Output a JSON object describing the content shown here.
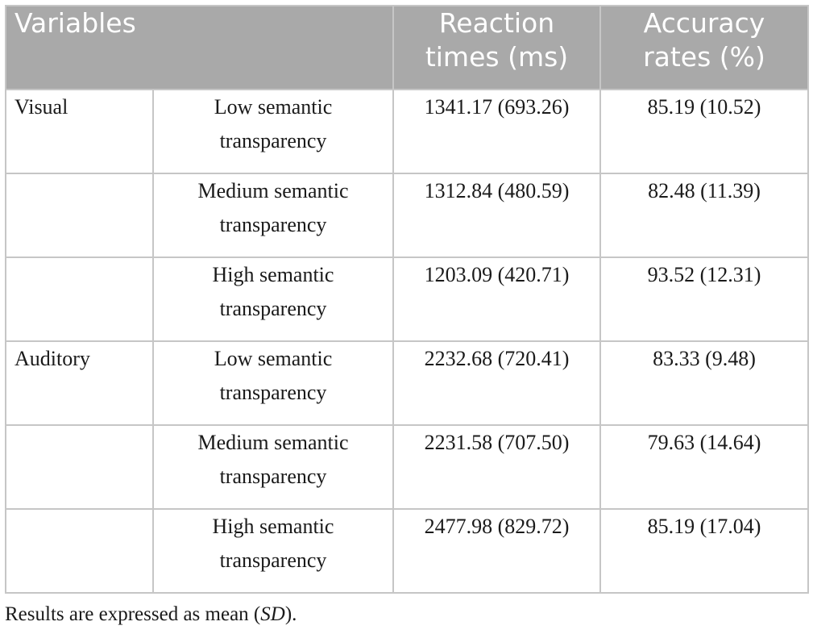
{
  "table": {
    "headers": {
      "variables": "Variables",
      "reaction_times_line1": "Reaction",
      "reaction_times_line2": "times (ms)",
      "accuracy_line1": "Accuracy",
      "accuracy_line2": "rates (%)"
    },
    "rows": [
      {
        "modality": "Visual",
        "condition_line1": "Low semantic",
        "condition_line2": "transparency",
        "reaction_time": "1341.17 (693.26)",
        "accuracy": "85.19 (10.52)"
      },
      {
        "modality": "",
        "condition_line1": "Medium semantic",
        "condition_line2": "transparency",
        "reaction_time": "1312.84 (480.59)",
        "accuracy": "82.48 (11.39)"
      },
      {
        "modality": "",
        "condition_line1": "High semantic",
        "condition_line2": "transparency",
        "reaction_time": "1203.09 (420.71)",
        "accuracy": "93.52 (12.31)"
      },
      {
        "modality": "Auditory",
        "condition_line1": "Low semantic",
        "condition_line2": "transparency",
        "reaction_time": "2232.68 (720.41)",
        "accuracy": "83.33 (9.48)"
      },
      {
        "modality": "",
        "condition_line1": "Medium semantic",
        "condition_line2": "transparency",
        "reaction_time": "2231.58 (707.50)",
        "accuracy": "79.63 (14.64)"
      },
      {
        "modality": "",
        "condition_line1": "High semantic",
        "condition_line2": "transparency",
        "reaction_time": "2477.98 (829.72)",
        "accuracy": "85.19 (17.04)"
      }
    ]
  },
  "footnote": {
    "prefix": "Results are expressed as mean (",
    "italic": "SD",
    "suffix": ")."
  },
  "colors": {
    "header_background": "#a9a9a9",
    "header_text": "#ffffff",
    "border": "#c6c6c6",
    "body_text": "#1a1a1a"
  }
}
